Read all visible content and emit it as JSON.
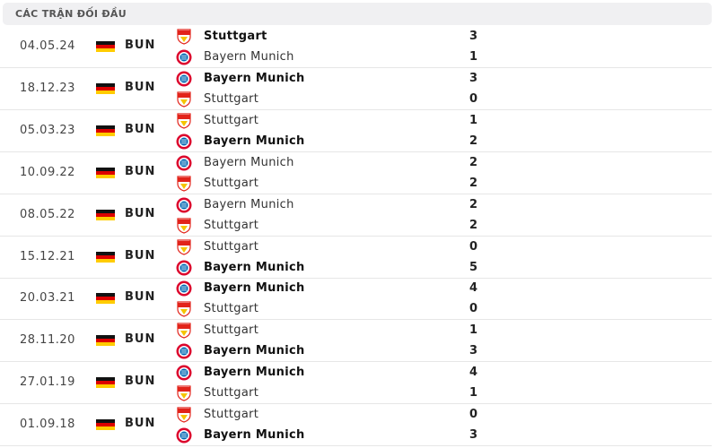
{
  "header": {
    "title": "CÁC TRẬN ĐỐI ĐẦU"
  },
  "matches": [
    {
      "date": "04.05.24",
      "league": "BUN",
      "home": {
        "name": "Stuttgart",
        "logo": "stuttgart",
        "score": "3",
        "winner": true
      },
      "away": {
        "name": "Bayern Munich",
        "logo": "bayern",
        "score": "1",
        "winner": false
      }
    },
    {
      "date": "18.12.23",
      "league": "BUN",
      "home": {
        "name": "Bayern Munich",
        "logo": "bayern",
        "score": "3",
        "winner": true
      },
      "away": {
        "name": "Stuttgart",
        "logo": "stuttgart",
        "score": "0",
        "winner": false
      }
    },
    {
      "date": "05.03.23",
      "league": "BUN",
      "home": {
        "name": "Stuttgart",
        "logo": "stuttgart",
        "score": "1",
        "winner": false
      },
      "away": {
        "name": "Bayern Munich",
        "logo": "bayern",
        "score": "2",
        "winner": true
      }
    },
    {
      "date": "10.09.22",
      "league": "BUN",
      "home": {
        "name": "Bayern Munich",
        "logo": "bayern",
        "score": "2",
        "winner": false
      },
      "away": {
        "name": "Stuttgart",
        "logo": "stuttgart",
        "score": "2",
        "winner": false
      }
    },
    {
      "date": "08.05.22",
      "league": "BUN",
      "home": {
        "name": "Bayern Munich",
        "logo": "bayern",
        "score": "2",
        "winner": false
      },
      "away": {
        "name": "Stuttgart",
        "logo": "stuttgart",
        "score": "2",
        "winner": false
      }
    },
    {
      "date": "15.12.21",
      "league": "BUN",
      "home": {
        "name": "Stuttgart",
        "logo": "stuttgart",
        "score": "0",
        "winner": false
      },
      "away": {
        "name": "Bayern Munich",
        "logo": "bayern",
        "score": "5",
        "winner": true
      }
    },
    {
      "date": "20.03.21",
      "league": "BUN",
      "home": {
        "name": "Bayern Munich",
        "logo": "bayern",
        "score": "4",
        "winner": true
      },
      "away": {
        "name": "Stuttgart",
        "logo": "stuttgart",
        "score": "0",
        "winner": false
      }
    },
    {
      "date": "28.11.20",
      "league": "BUN",
      "home": {
        "name": "Stuttgart",
        "logo": "stuttgart",
        "score": "1",
        "winner": false
      },
      "away": {
        "name": "Bayern Munich",
        "logo": "bayern",
        "score": "3",
        "winner": true
      }
    },
    {
      "date": "27.01.19",
      "league": "BUN",
      "home": {
        "name": "Bayern Munich",
        "logo": "bayern",
        "score": "4",
        "winner": true
      },
      "away": {
        "name": "Stuttgart",
        "logo": "stuttgart",
        "score": "1",
        "winner": false
      }
    },
    {
      "date": "01.09.18",
      "league": "BUN",
      "home": {
        "name": "Stuttgart",
        "logo": "stuttgart",
        "score": "0",
        "winner": false
      },
      "away": {
        "name": "Bayern Munich",
        "logo": "bayern",
        "score": "3",
        "winner": true
      }
    }
  ]
}
